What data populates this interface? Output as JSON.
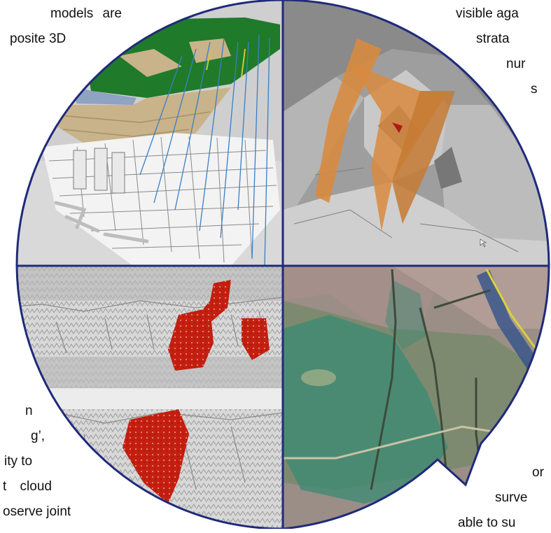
{
  "text_top_left": [
    " models are",
    "posite 3D"
  ],
  "text_top_right": [
    "visible aga",
    "strata",
    "nur",
    "s"
  ],
  "text_bottom_left": [
    "n",
    "g’,",
    "ity to",
    "t cloud",
    "oserve joint"
  ],
  "text_bottom_right": [
    "or",
    "surve",
    "able to su"
  ],
  "panels": [
    {
      "name": "3d-model-mine-workings",
      "description_icon": "mine-model-icon"
    },
    {
      "name": "fault-planes-terrain",
      "description_icon": "fault-plane-icon"
    },
    {
      "name": "point-cloud-rock-face",
      "description_icon": "point-cloud-icon"
    },
    {
      "name": "aerial-map-overlay",
      "description_icon": "aerial-map-icon"
    }
  ],
  "colors": {
    "border": "#1f2a7a",
    "fault_orange": "#d98a3e",
    "joint_red": "#c41f10",
    "grass_green": "#1f7a2a",
    "strata_tan": "#c9b38a",
    "water_blue": "#8fa3c2",
    "map_green": "#3a8a73",
    "map_blue": "#2b4f8a",
    "road_yellow": "#d9d23a"
  }
}
